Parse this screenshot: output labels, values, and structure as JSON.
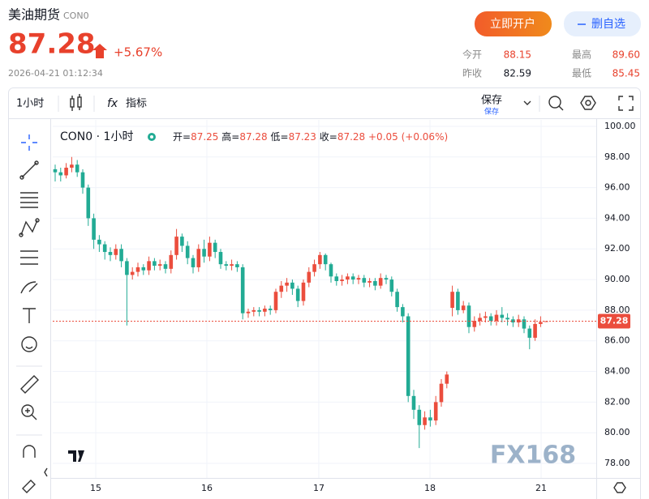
{
  "header": {
    "title": "美油期货",
    "code": "CON0",
    "price": "87.28",
    "change_pct": "+5.67%",
    "time": "2026-04-21 01:12:34",
    "open_account": "立即开户",
    "remove_watch": "删自选",
    "stats": [
      {
        "label": "今开",
        "value": "88.15"
      },
      {
        "label": "最高",
        "value": "89.60"
      },
      {
        "label": "昨收",
        "value": "82.59"
      },
      {
        "label": "最低",
        "value": "85.45"
      }
    ]
  },
  "toolbar": {
    "interval": "1小时",
    "fx": "fx",
    "indicators": "指标",
    "save": "保存",
    "save_sub": "保存"
  },
  "watermark": "FX168",
  "chart_data": {
    "type": "candlestick",
    "symbol": "CON0",
    "separator": "·",
    "interval": "1小时",
    "legend": {
      "open_label": "开=",
      "high_label": "高=",
      "low_label": "低=",
      "close_label": "收=",
      "change": "+0.05",
      "change_pct": "(+0.06%)"
    },
    "up_color": "#eb4d3d",
    "down_color": "#22ab94",
    "grid": true,
    "last_price_line": true,
    "open": [
      97.2,
      97.0,
      96.8,
      97.3,
      97.5,
      97.0,
      96.0,
      94.0,
      92.6,
      92.3,
      91.8,
      91.6,
      92.0,
      91.2,
      90.3,
      90.5,
      90.8,
      90.6,
      91.2,
      90.9,
      91.0,
      90.7,
      91.6,
      92.8,
      92.2,
      91.4,
      90.8,
      92.0,
      91.5,
      92.4,
      91.8,
      91.0,
      90.9,
      91.0,
      90.8,
      87.8,
      87.9,
      88.0,
      87.9,
      88.1,
      88.0,
      89.2,
      89.6,
      89.8,
      89.4,
      88.6,
      89.8,
      90.5,
      91.0,
      91.6,
      91.0,
      90.2,
      89.9,
      90.0,
      90.2,
      90.0,
      90.1,
      89.8,
      89.9,
      89.6,
      90.1,
      90.0,
      89.2,
      88.2,
      87.6,
      82.4,
      81.5,
      80.5,
      81.0,
      80.8,
      82.0,
      83.2,
      88.15,
      89.2,
      88.0,
      88.3,
      86.9,
      87.3,
      87.5,
      87.6,
      87.3,
      87.7,
      87.5,
      87.4,
      87.2,
      87.4,
      86.8,
      86.2,
      87.1,
      87.25
    ],
    "high": [
      97.5,
      97.3,
      97.6,
      98.0,
      97.8,
      97.2,
      96.2,
      94.3,
      92.9,
      92.5,
      92.1,
      92.3,
      92.3,
      91.4,
      90.8,
      91.1,
      91.0,
      91.5,
      91.4,
      91.3,
      91.2,
      91.9,
      93.3,
      93.0,
      92.5,
      91.6,
      92.3,
      92.6,
      92.8,
      92.6,
      92.0,
      91.2,
      91.3,
      91.2,
      91.0,
      88.1,
      88.2,
      88.2,
      88.3,
      88.3,
      89.4,
      89.9,
      90.1,
      90.0,
      89.6,
      90.0,
      90.8,
      91.3,
      91.8,
      91.7,
      91.1,
      90.4,
      90.3,
      90.4,
      90.4,
      90.3,
      90.3,
      90.1,
      90.1,
      90.4,
      90.3,
      90.2,
      89.4,
      88.4,
      87.8,
      82.8,
      81.8,
      81.4,
      81.5,
      82.4,
      83.5,
      84.0,
      89.6,
      89.4,
      88.6,
      88.5,
      87.6,
      87.8,
      87.9,
      87.8,
      88.0,
      88.2,
      87.8,
      87.6,
      87.7,
      87.6,
      87.0,
      87.4,
      87.6,
      87.28
    ],
    "low": [
      96.4,
      96.4,
      96.6,
      97.0,
      96.7,
      95.6,
      93.5,
      92.0,
      91.8,
      91.3,
      91.2,
      91.3,
      90.8,
      87.0,
      90.0,
      90.2,
      90.3,
      90.3,
      90.6,
      90.6,
      90.4,
      90.4,
      91.3,
      91.8,
      91.0,
      90.4,
      90.5,
      91.1,
      91.2,
      91.4,
      90.7,
      90.6,
      90.6,
      90.5,
      87.4,
      87.5,
      87.6,
      87.6,
      87.6,
      87.7,
      87.8,
      88.8,
      89.2,
      89.0,
      88.2,
      88.3,
      89.5,
      90.2,
      90.7,
      90.6,
      89.8,
      89.6,
      89.6,
      89.7,
      89.7,
      89.7,
      89.5,
      89.5,
      89.3,
      89.4,
      89.7,
      88.9,
      87.9,
      87.2,
      82.0,
      80.9,
      79.0,
      80.2,
      80.4,
      80.5,
      81.7,
      82.9,
      87.6,
      87.7,
      87.8,
      86.5,
      86.6,
      87.0,
      87.2,
      87.0,
      87.0,
      87.2,
      87.0,
      86.9,
      86.9,
      86.5,
      85.45,
      86.0,
      86.9,
      87.23
    ],
    "close": [
      97.0,
      96.8,
      97.3,
      97.5,
      97.0,
      96.0,
      94.0,
      92.6,
      92.3,
      91.8,
      91.6,
      92.0,
      91.2,
      90.3,
      90.5,
      90.8,
      90.6,
      91.2,
      90.9,
      91.0,
      90.7,
      91.6,
      92.8,
      92.2,
      91.4,
      90.8,
      92.0,
      91.5,
      92.4,
      91.8,
      91.0,
      90.9,
      91.0,
      90.8,
      87.8,
      87.9,
      88.0,
      87.9,
      88.1,
      88.0,
      89.2,
      89.6,
      89.8,
      89.4,
      88.6,
      89.8,
      90.5,
      91.0,
      91.6,
      91.0,
      90.2,
      89.9,
      90.0,
      90.2,
      90.0,
      90.1,
      89.8,
      89.9,
      89.6,
      90.1,
      90.0,
      89.2,
      88.2,
      87.6,
      82.4,
      81.5,
      80.5,
      81.0,
      80.8,
      82.0,
      83.2,
      83.8,
      89.2,
      88.0,
      88.3,
      86.9,
      87.3,
      87.5,
      87.6,
      87.3,
      87.7,
      87.5,
      87.4,
      87.2,
      87.4,
      86.8,
      86.2,
      87.1,
      87.23,
      87.28
    ],
    "xlim": [
      -0.44,
      98.09
    ],
    "xticks": [
      {
        "value": 7.35,
        "label": "15"
      },
      {
        "value": 27.5,
        "label": "16"
      },
      {
        "value": 47.79,
        "label": "17"
      },
      {
        "value": 67.94,
        "label": "18"
      },
      {
        "value": 88.09,
        "label": "21"
      }
    ],
    "ylim": [
      77.05,
      100.42
    ],
    "yticks": [
      {
        "value": 100,
        "label": "100.00"
      },
      {
        "value": 98,
        "label": "98.00"
      },
      {
        "value": 96,
        "label": "96.00"
      },
      {
        "value": 94,
        "label": "94.00"
      },
      {
        "value": 92,
        "label": "92.00"
      },
      {
        "value": 90,
        "label": "90.00"
      },
      {
        "value": 88,
        "label": "88.00"
      },
      {
        "value": 86,
        "label": "86.00"
      },
      {
        "value": 84,
        "label": "84.00"
      },
      {
        "value": 82,
        "label": "82.00"
      },
      {
        "value": 80,
        "label": "80.00"
      },
      {
        "value": 78,
        "label": "78.00"
      }
    ]
  }
}
